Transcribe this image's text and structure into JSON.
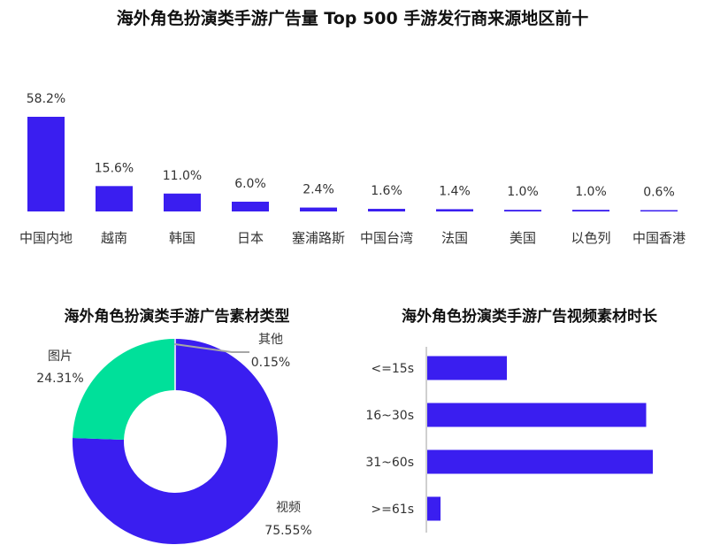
{
  "chart_data": [
    {
      "type": "bar",
      "title": "海外角色扮演类手游广告量 Top 500 手游发行商来源地区前十",
      "categories": [
        "中国内地",
        "越南",
        "韩国",
        "日本",
        "塞浦路斯",
        "中国台湾",
        "法国",
        "美国",
        "以色列",
        "中国香港"
      ],
      "values": [
        58.2,
        15.6,
        11.0,
        6.0,
        2.4,
        1.6,
        1.4,
        1.0,
        1.0,
        0.6
      ],
      "value_labels": [
        "58.2%",
        "15.6%",
        "11.0%",
        "6.0%",
        "2.4%",
        "1.6%",
        "1.4%",
        "1.0%",
        "1.0%",
        "0.6%"
      ],
      "unit": "%",
      "color": "#3a1ef0",
      "grid": false,
      "legend": "none"
    },
    {
      "type": "pie",
      "variant": "donut",
      "title": "海外角色扮演类手游广告素材类型",
      "slices": [
        {
          "label": "视频",
          "value": 75.55,
          "value_label": "75.55%",
          "color": "#3a1ef0"
        },
        {
          "label": "图片",
          "value": 24.31,
          "value_label": "24.31%",
          "color": "#00e09a"
        },
        {
          "label": "其他",
          "value": 0.15,
          "value_label": "0.15%",
          "color": "#3a1ef0"
        }
      ],
      "legend": "none"
    },
    {
      "type": "bar",
      "orientation": "horizontal",
      "title": "海外角色扮演类手游广告视频素材时长",
      "categories": [
        "<=15s",
        "16~30s",
        "31~60s",
        ">=61s"
      ],
      "values": [
        12,
        33,
        34,
        2
      ],
      "color": "#3a1ef0",
      "grid": false,
      "legend": "none"
    }
  ]
}
